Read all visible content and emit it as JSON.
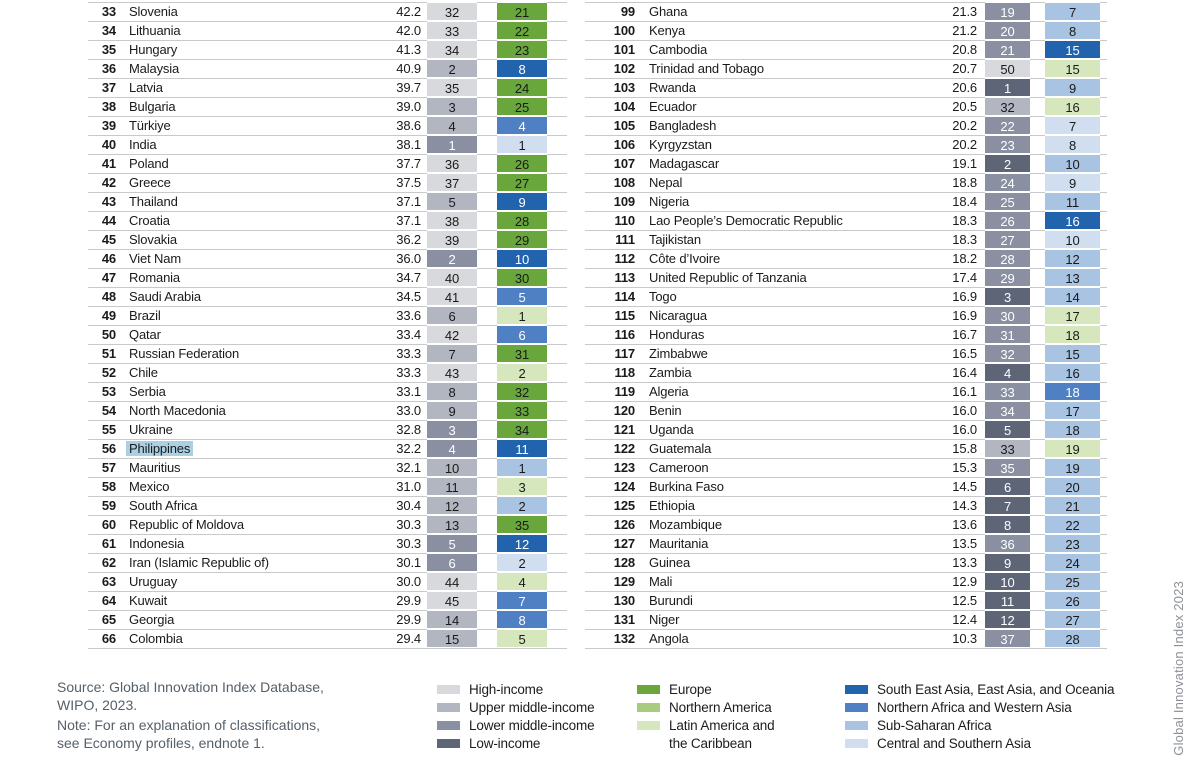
{
  "side_label": "Global Innovation Index 2023",
  "colors": {
    "row_line": "#c7c9cb",
    "text": "#1a1a1a",
    "white_text": "#ffffff",
    "country_highlight": "#abd0e4",
    "footer_text": "#566069",
    "income": {
      "HI": "#d8d9dc",
      "UM": "#b2b6c1",
      "LM": "#8a90a1",
      "LI": "#5e6577"
    },
    "region": {
      "EUR": "#69a73d",
      "NAM": "#a9cb80",
      "LCN": "#d7e7bd",
      "SEAO": "#2263ad",
      "NAWA": "#4e80c3",
      "SSA": "#a9c3e3",
      "CSA": "#d0def0"
    },
    "white_text_income": [
      "LM",
      "LI"
    ],
    "white_text_region": [
      "SEAO",
      "NAWA"
    ]
  },
  "tables": {
    "left": {
      "rows": [
        {
          "rank": "33",
          "country": "Slovenia",
          "score": "42.2",
          "income_rank": "32",
          "income_group": "HI",
          "region_rank": "21",
          "region": "EUR"
        },
        {
          "rank": "34",
          "country": "Lithuania",
          "score": "42.0",
          "income_rank": "33",
          "income_group": "HI",
          "region_rank": "22",
          "region": "EUR"
        },
        {
          "rank": "35",
          "country": "Hungary",
          "score": "41.3",
          "income_rank": "34",
          "income_group": "HI",
          "region_rank": "23",
          "region": "EUR"
        },
        {
          "rank": "36",
          "country": "Malaysia",
          "score": "40.9",
          "income_rank": "2",
          "income_group": "UM",
          "region_rank": "8",
          "region": "SEAO"
        },
        {
          "rank": "37",
          "country": "Latvia",
          "score": "39.7",
          "income_rank": "35",
          "income_group": "HI",
          "region_rank": "24",
          "region": "EUR"
        },
        {
          "rank": "38",
          "country": "Bulgaria",
          "score": "39.0",
          "income_rank": "3",
          "income_group": "UM",
          "region_rank": "25",
          "region": "EUR"
        },
        {
          "rank": "39",
          "country": "Türkiye",
          "score": "38.6",
          "income_rank": "4",
          "income_group": "UM",
          "region_rank": "4",
          "region": "NAWA"
        },
        {
          "rank": "40",
          "country": "India",
          "score": "38.1",
          "income_rank": "1",
          "income_group": "LM",
          "region_rank": "1",
          "region": "CSA"
        },
        {
          "rank": "41",
          "country": "Poland",
          "score": "37.7",
          "income_rank": "36",
          "income_group": "HI",
          "region_rank": "26",
          "region": "EUR"
        },
        {
          "rank": "42",
          "country": "Greece",
          "score": "37.5",
          "income_rank": "37",
          "income_group": "HI",
          "region_rank": "27",
          "region": "EUR"
        },
        {
          "rank": "43",
          "country": "Thailand",
          "score": "37.1",
          "income_rank": "5",
          "income_group": "UM",
          "region_rank": "9",
          "region": "SEAO"
        },
        {
          "rank": "44",
          "country": "Croatia",
          "score": "37.1",
          "income_rank": "38",
          "income_group": "HI",
          "region_rank": "28",
          "region": "EUR"
        },
        {
          "rank": "45",
          "country": "Slovakia",
          "score": "36.2",
          "income_rank": "39",
          "income_group": "HI",
          "region_rank": "29",
          "region": "EUR"
        },
        {
          "rank": "46",
          "country": "Viet Nam",
          "score": "36.0",
          "income_rank": "2",
          "income_group": "LM",
          "region_rank": "10",
          "region": "SEAO"
        },
        {
          "rank": "47",
          "country": "Romania",
          "score": "34.7",
          "income_rank": "40",
          "income_group": "HI",
          "region_rank": "30",
          "region": "EUR"
        },
        {
          "rank": "48",
          "country": "Saudi Arabia",
          "score": "34.5",
          "income_rank": "41",
          "income_group": "HI",
          "region_rank": "5",
          "region": "NAWA"
        },
        {
          "rank": "49",
          "country": "Brazil",
          "score": "33.6",
          "income_rank": "6",
          "income_group": "UM",
          "region_rank": "1",
          "region": "LCN"
        },
        {
          "rank": "50",
          "country": "Qatar",
          "score": "33.4",
          "income_rank": "42",
          "income_group": "HI",
          "region_rank": "6",
          "region": "NAWA"
        },
        {
          "rank": "51",
          "country": "Russian Federation",
          "score": "33.3",
          "income_rank": "7",
          "income_group": "UM",
          "region_rank": "31",
          "region": "EUR"
        },
        {
          "rank": "52",
          "country": "Chile",
          "score": "33.3",
          "income_rank": "43",
          "income_group": "HI",
          "region_rank": "2",
          "region": "LCN"
        },
        {
          "rank": "53",
          "country": "Serbia",
          "score": "33.1",
          "income_rank": "8",
          "income_group": "UM",
          "region_rank": "32",
          "region": "EUR"
        },
        {
          "rank": "54",
          "country": "North Macedonia",
          "score": "33.0",
          "income_rank": "9",
          "income_group": "UM",
          "region_rank": "33",
          "region": "EUR"
        },
        {
          "rank": "55",
          "country": "Ukraine",
          "score": "32.8",
          "income_rank": "3",
          "income_group": "LM",
          "region_rank": "34",
          "region": "EUR"
        },
        {
          "rank": "56",
          "country": "Philippines",
          "score": "32.2",
          "income_rank": "4",
          "income_group": "LM",
          "region_rank": "11",
          "region": "SEAO",
          "highlight": true
        },
        {
          "rank": "57",
          "country": "Mauritius",
          "score": "32.1",
          "income_rank": "10",
          "income_group": "UM",
          "region_rank": "1",
          "region": "SSA"
        },
        {
          "rank": "58",
          "country": "Mexico",
          "score": "31.0",
          "income_rank": "11",
          "income_group": "UM",
          "region_rank": "3",
          "region": "LCN"
        },
        {
          "rank": "59",
          "country": "South Africa",
          "score": "30.4",
          "income_rank": "12",
          "income_group": "UM",
          "region_rank": "2",
          "region": "SSA"
        },
        {
          "rank": "60",
          "country": "Republic of Moldova",
          "score": "30.3",
          "income_rank": "13",
          "income_group": "UM",
          "region_rank": "35",
          "region": "EUR"
        },
        {
          "rank": "61",
          "country": "Indonesia",
          "score": "30.3",
          "income_rank": "5",
          "income_group": "LM",
          "region_rank": "12",
          "region": "SEAO"
        },
        {
          "rank": "62",
          "country": "Iran (Islamic Republic of)",
          "score": "30.1",
          "income_rank": "6",
          "income_group": "LM",
          "region_rank": "2",
          "region": "CSA"
        },
        {
          "rank": "63",
          "country": "Uruguay",
          "score": "30.0",
          "income_rank": "44",
          "income_group": "HI",
          "region_rank": "4",
          "region": "LCN"
        },
        {
          "rank": "64",
          "country": "Kuwait",
          "score": "29.9",
          "income_rank": "45",
          "income_group": "HI",
          "region_rank": "7",
          "region": "NAWA"
        },
        {
          "rank": "65",
          "country": "Georgia",
          "score": "29.9",
          "income_rank": "14",
          "income_group": "UM",
          "region_rank": "8",
          "region": "NAWA"
        },
        {
          "rank": "66",
          "country": "Colombia",
          "score": "29.4",
          "income_rank": "15",
          "income_group": "UM",
          "region_rank": "5",
          "region": "LCN"
        }
      ]
    },
    "right": {
      "rows": [
        {
          "rank": "99",
          "country": "Ghana",
          "score": "21.3",
          "income_rank": "19",
          "income_group": "LM",
          "region_rank": "7",
          "region": "SSA"
        },
        {
          "rank": "100",
          "country": "Kenya",
          "score": "21.2",
          "income_rank": "20",
          "income_group": "LM",
          "region_rank": "8",
          "region": "SSA"
        },
        {
          "rank": "101",
          "country": "Cambodia",
          "score": "20.8",
          "income_rank": "21",
          "income_group": "LM",
          "region_rank": "15",
          "region": "SEAO"
        },
        {
          "rank": "102",
          "country": "Trinidad and Tobago",
          "score": "20.7",
          "income_rank": "50",
          "income_group": "HI",
          "region_rank": "15",
          "region": "LCN"
        },
        {
          "rank": "103",
          "country": "Rwanda",
          "score": "20.6",
          "income_rank": "1",
          "income_group": "LI",
          "region_rank": "9",
          "region": "SSA"
        },
        {
          "rank": "104",
          "country": "Ecuador",
          "score": "20.5",
          "income_rank": "32",
          "income_group": "UM",
          "region_rank": "16",
          "region": "LCN"
        },
        {
          "rank": "105",
          "country": "Bangladesh",
          "score": "20.2",
          "income_rank": "22",
          "income_group": "LM",
          "region_rank": "7",
          "region": "CSA"
        },
        {
          "rank": "106",
          "country": "Kyrgyzstan",
          "score": "20.2",
          "income_rank": "23",
          "income_group": "LM",
          "region_rank": "8",
          "region": "CSA"
        },
        {
          "rank": "107",
          "country": "Madagascar",
          "score": "19.1",
          "income_rank": "2",
          "income_group": "LI",
          "region_rank": "10",
          "region": "SSA"
        },
        {
          "rank": "108",
          "country": "Nepal",
          "score": "18.8",
          "income_rank": "24",
          "income_group": "LM",
          "region_rank": "9",
          "region": "CSA"
        },
        {
          "rank": "109",
          "country": "Nigeria",
          "score": "18.4",
          "income_rank": "25",
          "income_group": "LM",
          "region_rank": "11",
          "region": "SSA"
        },
        {
          "rank": "110",
          "country": "Lao People’s Democratic Republic",
          "score": "18.3",
          "income_rank": "26",
          "income_group": "LM",
          "region_rank": "16",
          "region": "SEAO"
        },
        {
          "rank": "111",
          "country": "Tajikistan",
          "score": "18.3",
          "income_rank": "27",
          "income_group": "LM",
          "region_rank": "10",
          "region": "CSA"
        },
        {
          "rank": "112",
          "country": "Côte d’Ivoire",
          "score": "18.2",
          "income_rank": "28",
          "income_group": "LM",
          "region_rank": "12",
          "region": "SSA"
        },
        {
          "rank": "113",
          "country": "United Republic of Tanzania",
          "score": "17.4",
          "income_rank": "29",
          "income_group": "LM",
          "region_rank": "13",
          "region": "SSA"
        },
        {
          "rank": "114",
          "country": "Togo",
          "score": "16.9",
          "income_rank": "3",
          "income_group": "LI",
          "region_rank": "14",
          "region": "SSA"
        },
        {
          "rank": "115",
          "country": "Nicaragua",
          "score": "16.9",
          "income_rank": "30",
          "income_group": "LM",
          "region_rank": "17",
          "region": "LCN"
        },
        {
          "rank": "116",
          "country": "Honduras",
          "score": "16.7",
          "income_rank": "31",
          "income_group": "LM",
          "region_rank": "18",
          "region": "LCN"
        },
        {
          "rank": "117",
          "country": "Zimbabwe",
          "score": "16.5",
          "income_rank": "32",
          "income_group": "LM",
          "region_rank": "15",
          "region": "SSA"
        },
        {
          "rank": "118",
          "country": "Zambia",
          "score": "16.4",
          "income_rank": "4",
          "income_group": "LI",
          "region_rank": "16",
          "region": "SSA"
        },
        {
          "rank": "119",
          "country": "Algeria",
          "score": "16.1",
          "income_rank": "33",
          "income_group": "LM",
          "region_rank": "18",
          "region": "NAWA"
        },
        {
          "rank": "120",
          "country": "Benin",
          "score": "16.0",
          "income_rank": "34",
          "income_group": "LM",
          "region_rank": "17",
          "region": "SSA"
        },
        {
          "rank": "121",
          "country": "Uganda",
          "score": "16.0",
          "income_rank": "5",
          "income_group": "LI",
          "region_rank": "18",
          "region": "SSA"
        },
        {
          "rank": "122",
          "country": "Guatemala",
          "score": "15.8",
          "income_rank": "33",
          "income_group": "UM",
          "region_rank": "19",
          "region": "LCN"
        },
        {
          "rank": "123",
          "country": "Cameroon",
          "score": "15.3",
          "income_rank": "35",
          "income_group": "LM",
          "region_rank": "19",
          "region": "SSA"
        },
        {
          "rank": "124",
          "country": "Burkina Faso",
          "score": "14.5",
          "income_rank": "6",
          "income_group": "LI",
          "region_rank": "20",
          "region": "SSA"
        },
        {
          "rank": "125",
          "country": "Ethiopia",
          "score": "14.3",
          "income_rank": "7",
          "income_group": "LI",
          "region_rank": "21",
          "region": "SSA"
        },
        {
          "rank": "126",
          "country": "Mozambique",
          "score": "13.6",
          "income_rank": "8",
          "income_group": "LI",
          "region_rank": "22",
          "region": "SSA"
        },
        {
          "rank": "127",
          "country": "Mauritania",
          "score": "13.5",
          "income_rank": "36",
          "income_group": "LM",
          "region_rank": "23",
          "region": "SSA"
        },
        {
          "rank": "128",
          "country": "Guinea",
          "score": "13.3",
          "income_rank": "9",
          "income_group": "LI",
          "region_rank": "24",
          "region": "SSA"
        },
        {
          "rank": "129",
          "country": "Mali",
          "score": "12.9",
          "income_rank": "10",
          "income_group": "LI",
          "region_rank": "25",
          "region": "SSA"
        },
        {
          "rank": "130",
          "country": "Burundi",
          "score": "12.5",
          "income_rank": "11",
          "income_group": "LI",
          "region_rank": "26",
          "region": "SSA"
        },
        {
          "rank": "131",
          "country": "Niger",
          "score": "12.4",
          "income_rank": "12",
          "income_group": "LI",
          "region_rank": "27",
          "region": "SSA"
        },
        {
          "rank": "132",
          "country": "Angola",
          "score": "10.3",
          "income_rank": "37",
          "income_group": "LM",
          "region_rank": "28",
          "region": "SSA"
        }
      ]
    }
  },
  "legend": {
    "income": [
      {
        "label": "High-income",
        "key": "HI"
      },
      {
        "label": "Upper middle-income",
        "key": "UM"
      },
      {
        "label": "Lower middle-income",
        "key": "LM"
      },
      {
        "label": "Low-income",
        "key": "LI"
      }
    ],
    "regions_green": [
      {
        "label": "Europe",
        "key": "EUR"
      },
      {
        "label": "Northern America",
        "key": "NAM"
      },
      {
        "label": "Latin America and\nthe Caribbean",
        "key": "LCN",
        "tall": true
      }
    ],
    "regions_blue": [
      {
        "label": "South East Asia, East Asia, and Oceania",
        "key": "SEAO"
      },
      {
        "label": "Northern Africa and Western Asia",
        "key": "NAWA"
      },
      {
        "label": "Sub-Saharan Africa",
        "key": "SSA"
      },
      {
        "label": "Central and Southern Asia",
        "key": "CSA"
      }
    ]
  },
  "footer": {
    "source": "Source: Global Innovation Index Database,\nWIPO, 2023.",
    "note": "Note: For an explanation of classifications,\nsee Economy profiles, endnote 1."
  }
}
